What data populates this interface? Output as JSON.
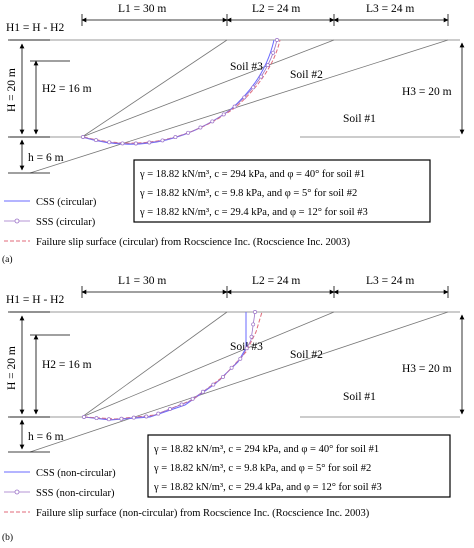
{
  "panels": [
    {
      "id": "a",
      "tag": "(a)",
      "dims": {
        "l1": "L1 = 30 m",
        "l2": "L2 = 24 m",
        "l3": "L3 = 24 m",
        "h1": "H1 = H - H2",
        "h": "H = 20 m",
        "h2": "H2 = 16 m",
        "h_small": "h = 6 m",
        "h3": "H3 = 20 m"
      },
      "soils": [
        "Soil #3",
        "Soil #2",
        "Soil #1"
      ],
      "properties": [
        "γ = 18.82 kN/m³, c = 294 kPa, and φ = 40° for soil #1",
        "γ = 18.82 kN/m³, c = 9.8 kPa, and φ = 5° for soil #2",
        "γ = 18.82 kN/m³, c = 29.4 kPa, and φ = 12° for soil #3"
      ],
      "legend": [
        {
          "label": "CSS (circular)",
          "color": "#6a6aff",
          "style": "solid"
        },
        {
          "label": "SSS (circular)",
          "color": "#9b72c8",
          "style": "circles"
        },
        {
          "label": "Failure slip surface (circular) from Rocscience Inc. (Rocscience Inc. 2003)",
          "color": "#e06a7a",
          "style": "dashed"
        }
      ]
    },
    {
      "id": "b",
      "tag": "(b)",
      "dims": {
        "l1": "L1 = 30 m",
        "l2": "L2 = 24 m",
        "l3": "L3 = 24 m",
        "h1": "H1 = H - H2",
        "h": "H = 20 m",
        "h2": "H2 = 16 m",
        "h_small": "h = 6 m",
        "h3": "H3 = 20 m"
      },
      "soils": [
        "Soil #3",
        "Soil #2",
        "Soil #1"
      ],
      "properties": [
        "γ = 18.82 kN/m³, c = 294 kPa, and φ = 40° for soil #1",
        "γ = 18.82 kN/m³, c = 9.8 kPa, and φ = 5° for soil #2",
        "γ = 18.82 kN/m³, c = 29.4 kPa, and φ = 12° for soil #3"
      ],
      "legend": [
        {
          "label": "CSS (non-circular)",
          "color": "#6a6aff",
          "style": "solid"
        },
        {
          "label": "SSS (non-circular)",
          "color": "#9b72c8",
          "style": "circles"
        },
        {
          "label": "Failure slip surface (non-circular) from Rocscience Inc. (Rocscience Inc. 2003)",
          "color": "#e06a7a",
          "style": "dashed"
        }
      ]
    }
  ]
}
